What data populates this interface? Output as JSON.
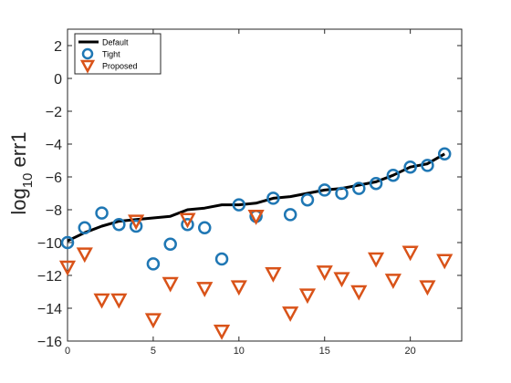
{
  "chart_data": {
    "type": "line",
    "title": "",
    "xlabel": "",
    "ylabel": "log10 err1",
    "ylabel_parts": {
      "base": "log",
      "sub": "10",
      "rest": " err1"
    },
    "xlim": [
      0,
      23
    ],
    "ylim": [
      -16,
      3
    ],
    "xticks": [
      0,
      5,
      10,
      15,
      20
    ],
    "yticks": [
      2,
      0,
      -2,
      -4,
      -6,
      -8,
      -10,
      -12,
      -14,
      -16
    ],
    "ytick_labels": [
      "2",
      "0",
      "−2",
      "−4",
      "−6",
      "−8",
      "−10",
      "−12",
      "−14",
      "−16"
    ],
    "grid": false,
    "legend_position": "top-left",
    "series": [
      {
        "name": "Default",
        "style": "line",
        "color": "#000000",
        "x": [
          0,
          1,
          2,
          3,
          4,
          5,
          6,
          7,
          8,
          9,
          10,
          11,
          12,
          13,
          14,
          15,
          16,
          17,
          18,
          19,
          20,
          21,
          22
        ],
        "y": [
          -9.9,
          -9.4,
          -9.0,
          -8.7,
          -8.6,
          -8.5,
          -8.4,
          -8.0,
          -7.9,
          -7.7,
          -7.7,
          -7.6,
          -7.3,
          -7.2,
          -7.0,
          -6.8,
          -6.7,
          -6.5,
          -6.3,
          -5.9,
          -5.4,
          -5.2,
          -4.6
        ]
      },
      {
        "name": "Tight",
        "style": "circle",
        "color": "#1f77b4",
        "x": [
          0,
          1,
          2,
          3,
          4,
          5,
          6,
          7,
          8,
          9,
          10,
          11,
          12,
          13,
          14,
          15,
          16,
          17,
          18,
          19,
          20,
          21,
          22
        ],
        "y": [
          -10.0,
          -9.1,
          -8.2,
          -8.9,
          -9.0,
          -11.3,
          -10.1,
          -8.9,
          -9.1,
          -11.0,
          -7.7,
          -8.4,
          -7.3,
          -8.3,
          -7.4,
          -6.8,
          -7.0,
          -6.7,
          -6.4,
          -5.9,
          -5.4,
          -5.3,
          -4.6
        ]
      },
      {
        "name": "Proposed",
        "style": "triangle-down",
        "color": "#d95319",
        "x": [
          0,
          1,
          2,
          3,
          4,
          5,
          6,
          7,
          8,
          9,
          10,
          11,
          12,
          13,
          14,
          15,
          16,
          17,
          18,
          19,
          20,
          21,
          22
        ],
        "y": [
          -11.5,
          -10.7,
          -13.5,
          -13.5,
          -8.7,
          -14.7,
          -12.5,
          -8.6,
          -12.8,
          -15.4,
          -12.7,
          -8.4,
          -11.9,
          -14.3,
          -13.2,
          -11.8,
          -12.2,
          -13.0,
          -11.0,
          -12.3,
          -10.6,
          -12.7,
          -11.1
        ]
      }
    ]
  }
}
